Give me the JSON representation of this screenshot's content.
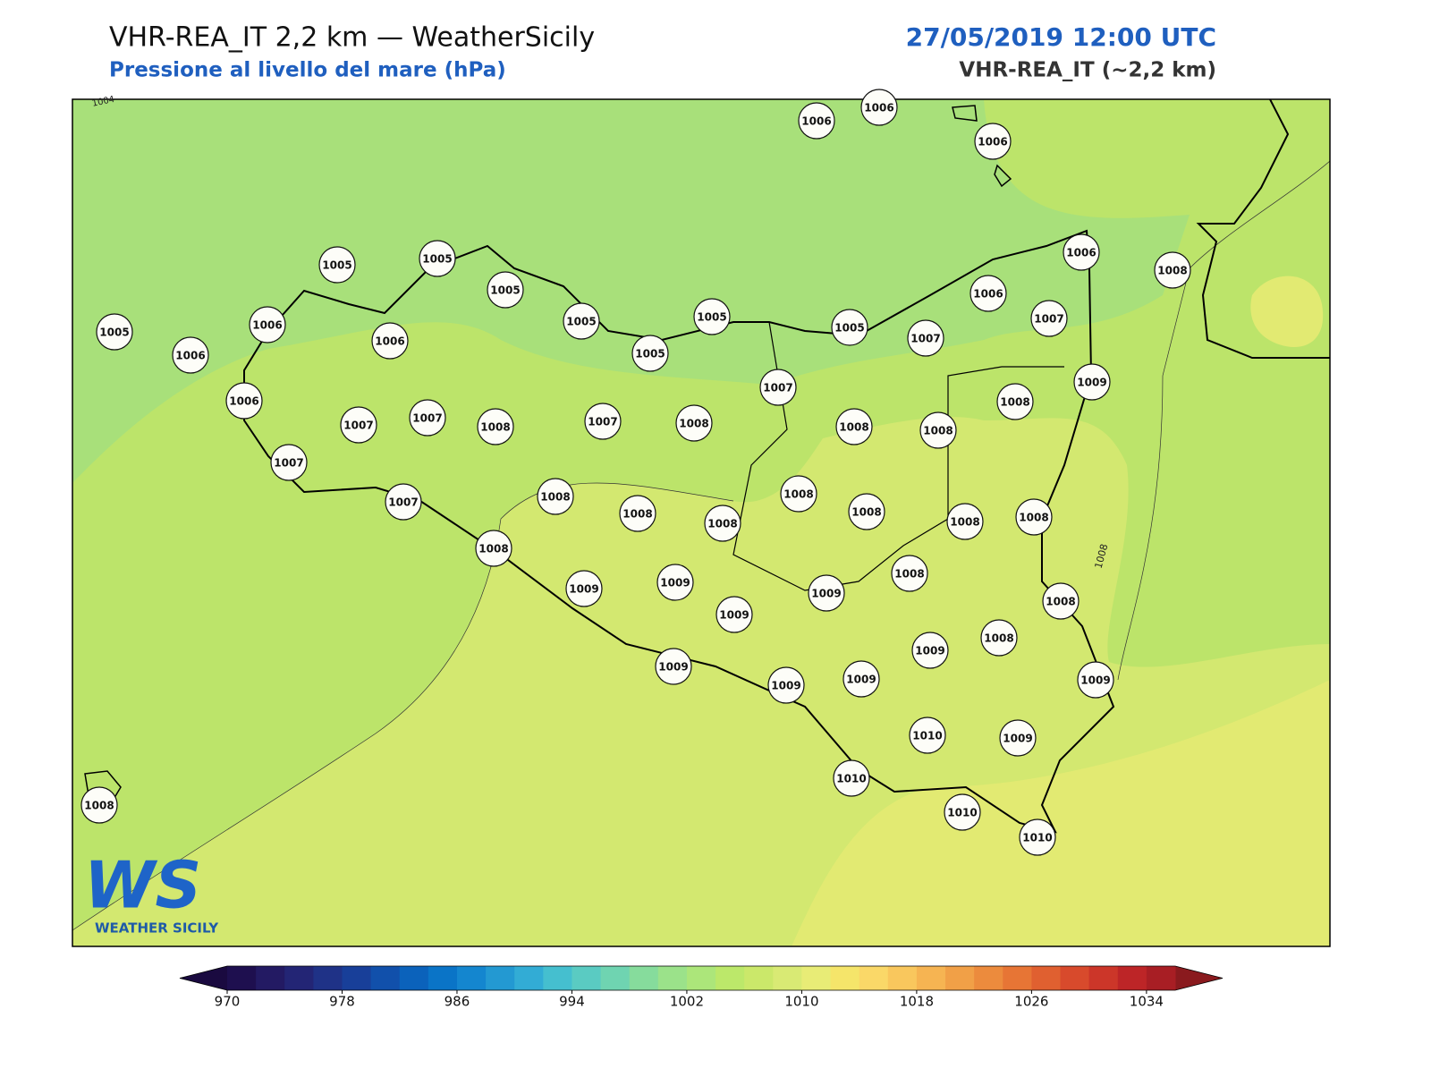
{
  "header": {
    "title": "VHR-REA_IT 2,2 km — WeatherSicily",
    "subtitle": "Pressione al livello del mare (hPa)",
    "datetime": "27/05/2019 12:00 UTC",
    "model": "VHR-REA_IT (~2,2 km)"
  },
  "contour_labels": [
    1004,
    1008
  ],
  "stations": [
    1006,
    1006,
    1006,
    1006,
    1008,
    1005,
    1005,
    1005,
    1005,
    1005,
    1005,
    1005,
    1006,
    1007,
    1007,
    1005,
    1006,
    1006,
    1006,
    1006,
    1007,
    1007,
    1008,
    1007,
    1008,
    1007,
    1008,
    1008,
    1008,
    1009,
    1007,
    1007,
    1008,
    1008,
    1008,
    1008,
    1008,
    1008,
    1008,
    1008,
    1009,
    1009,
    1009,
    1009,
    1008,
    1008,
    1009,
    1008,
    1009,
    1009,
    1009,
    1009,
    1010,
    1009,
    1010,
    1010,
    1010,
    1008
  ],
  "colorbar": {
    "ticks": [
      970,
      978,
      986,
      994,
      1002,
      1010,
      1018,
      1026,
      1034
    ],
    "colors": [
      "#1e0f4f",
      "#231a63",
      "#232575",
      "#1f3287",
      "#183f99",
      "#1150ab",
      "#0b62bb",
      "#0a74c7",
      "#1486cf",
      "#2399d2",
      "#32acd5",
      "#45bfcf",
      "#5acbc2",
      "#6fd4b1",
      "#86dc9c",
      "#9be28a",
      "#ace67a",
      "#bce86a",
      "#cbe86a",
      "#d9ea74",
      "#e8ec76",
      "#f5e56a",
      "#fad868",
      "#f9c75d",
      "#f6b452",
      "#f1a047",
      "#ec8b3d",
      "#e77535",
      "#e06030",
      "#d84a2c",
      "#cc3629",
      "#bd2527",
      "#a81e24"
    ],
    "under_color": "#1a0a40",
    "over_color": "#8a1a1e"
  },
  "logo": {
    "mark": "WS",
    "text": "WEATHER SICILY"
  }
}
